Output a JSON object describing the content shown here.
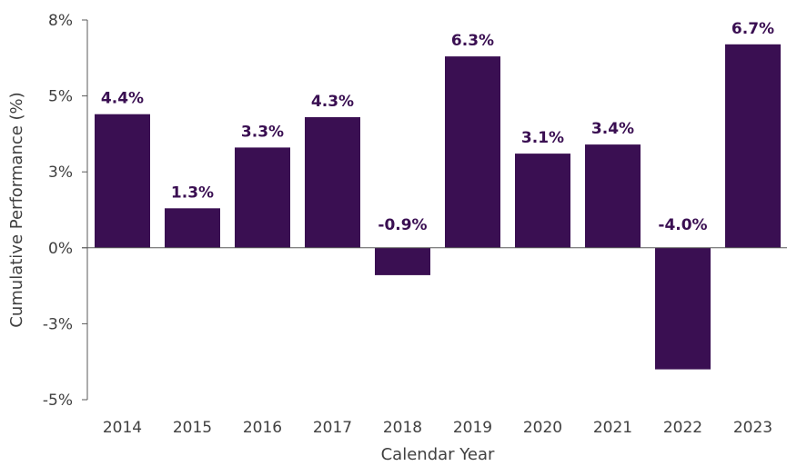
{
  "colors": {
    "bar": "#3a0f52",
    "data_label": "#3a0f52",
    "axis": "#595959",
    "text": "#404040"
  },
  "chart_data": {
    "type": "bar",
    "xlabel": "Calendar Year",
    "ylabel": "Cumulative Performance (%)",
    "categories": [
      "2014",
      "2015",
      "2016",
      "2017",
      "2018",
      "2019",
      "2020",
      "2021",
      "2022",
      "2023"
    ],
    "values": [
      4.4,
      1.3,
      3.3,
      4.3,
      -0.9,
      6.3,
      3.1,
      3.4,
      -4.0,
      6.7
    ],
    "data_labels": [
      "4.4%",
      "1.3%",
      "3.3%",
      "4.3%",
      "-0.9%",
      "6.3%",
      "3.1%",
      "3.4%",
      "-4.0%",
      "6.7%"
    ],
    "ylim": [
      -5,
      7.5
    ],
    "yticks": [
      {
        "value": 7.5,
        "label": "8%"
      },
      {
        "value": 5,
        "label": "5%"
      },
      {
        "value": 2.5,
        "label": "3%"
      },
      {
        "value": 0,
        "label": "0%"
      },
      {
        "value": -2.5,
        "label": "-3%"
      },
      {
        "value": -5,
        "label": "-5%"
      }
    ],
    "grid": false,
    "legend": "none"
  }
}
